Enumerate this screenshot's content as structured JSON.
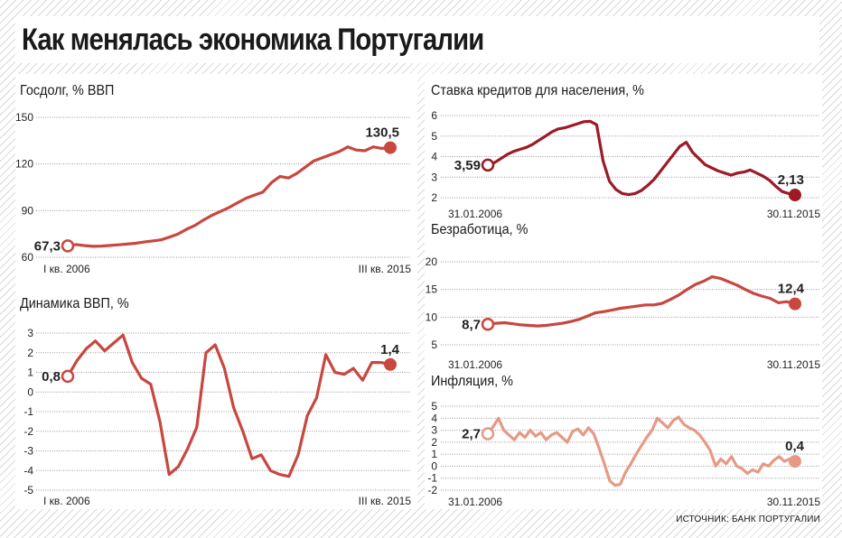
{
  "page": {
    "title": "Как менялась экономика Португалии",
    "source": "ИСТОЧНИК: БАНК ПОРТУГАЛИИ"
  },
  "chart_data": [
    {
      "id": "debt",
      "type": "line",
      "title": "Госдолг, % ВВП",
      "color": "#c8473f",
      "ylim": [
        60,
        150
      ],
      "yticks": [
        60,
        90,
        120,
        150
      ],
      "x_start_label": "I кв. 2006",
      "x_end_label": "III кв. 2015",
      "start_label": "67,3",
      "end_label": "130,5",
      "values": [
        67.3,
        68.2,
        67.5,
        67.0,
        67.2,
        67.6,
        68.0,
        68.5,
        69.0,
        69.8,
        70.5,
        71.2,
        73.0,
        75.0,
        78.0,
        80.5,
        84.0,
        87.0,
        89.5,
        92.0,
        95.0,
        98.0,
        100.0,
        102.0,
        108.0,
        112.0,
        111.0,
        114.0,
        118.0,
        122.0,
        124.0,
        126.0,
        128.0,
        131.0,
        129.0,
        128.5,
        131.0,
        130.0,
        130.5
      ]
    },
    {
      "id": "gdp",
      "type": "line",
      "title": "Динамика ВВП, %",
      "color": "#c8473f",
      "ylim": [
        -5,
        3
      ],
      "yticks": [
        -5,
        -4,
        -3,
        -2,
        -1,
        0,
        1,
        2,
        3
      ],
      "x_start_label": "I кв. 2006",
      "x_end_label": "III кв. 2015",
      "start_label": "0,8",
      "end_label": "1,4",
      "values": [
        0.8,
        1.6,
        2.2,
        2.6,
        2.1,
        2.5,
        2.9,
        1.5,
        0.7,
        0.4,
        -1.5,
        -4.2,
        -3.8,
        -2.9,
        -1.8,
        2.0,
        2.4,
        1.2,
        -0.8,
        -2.0,
        -3.4,
        -3.2,
        -4.0,
        -4.2,
        -4.3,
        -3.2,
        -1.2,
        -0.3,
        1.9,
        1.0,
        0.9,
        1.2,
        0.6,
        1.5,
        1.5,
        1.4
      ]
    },
    {
      "id": "rate",
      "type": "line",
      "title": "Ставка кредитов для населения, %",
      "color": "#9b1b26",
      "ylim": [
        2,
        6
      ],
      "yticks": [
        2,
        3,
        4,
        5,
        6
      ],
      "x_start_label": "31.01.2006",
      "x_end_label": "30.11.2015",
      "start_label": "3,59",
      "end_label": "2,13",
      "values": [
        3.59,
        3.7,
        3.9,
        4.1,
        4.25,
        4.35,
        4.45,
        4.6,
        4.8,
        5.0,
        5.2,
        5.35,
        5.4,
        5.5,
        5.6,
        5.7,
        5.72,
        5.55,
        3.8,
        2.8,
        2.4,
        2.2,
        2.15,
        2.2,
        2.35,
        2.6,
        2.9,
        3.3,
        3.7,
        4.1,
        4.5,
        4.7,
        4.2,
        3.9,
        3.6,
        3.45,
        3.3,
        3.2,
        3.1,
        3.2,
        3.25,
        3.35,
        3.2,
        3.05,
        2.85,
        2.55,
        2.3,
        2.2,
        2.13
      ]
    },
    {
      "id": "unemployment",
      "type": "line",
      "title": "Безработица, %",
      "color": "#c8473f",
      "ylim": [
        5,
        20
      ],
      "yticks": [
        5,
        10,
        15,
        20
      ],
      "x_start_label": "31.01.2006",
      "x_end_label": "30.11.2015",
      "start_label": "8,7",
      "end_label": "12,4",
      "values": [
        8.7,
        8.9,
        9.0,
        8.8,
        8.6,
        8.5,
        8.4,
        8.5,
        8.7,
        8.9,
        9.2,
        9.6,
        10.2,
        10.8,
        11.0,
        11.3,
        11.6,
        11.8,
        12.0,
        12.2,
        12.2,
        12.5,
        13.2,
        14.0,
        15.0,
        15.9,
        16.5,
        17.3,
        17.0,
        16.4,
        15.8,
        15.0,
        14.3,
        13.8,
        13.4,
        12.6,
        12.8,
        12.4
      ]
    },
    {
      "id": "inflation",
      "type": "line",
      "title": "Инфляция, %",
      "color": "#e59a85",
      "ylim": [
        -2,
        5
      ],
      "yticks": [
        -2,
        -1,
        0,
        1,
        2,
        3,
        4,
        5
      ],
      "x_start_label": "31.01.2006",
      "x_end_label": "30.11.2015",
      "start_label": "2,7",
      "end_label": "0,4",
      "values": [
        2.7,
        3.3,
        4.0,
        3.0,
        2.6,
        2.2,
        2.8,
        2.4,
        3.0,
        2.5,
        2.8,
        2.2,
        2.6,
        2.8,
        2.4,
        2.0,
        2.9,
        3.1,
        2.6,
        3.2,
        2.7,
        1.5,
        0.2,
        -1.2,
        -1.6,
        -1.5,
        -0.5,
        0.2,
        1.0,
        1.7,
        2.4,
        3.0,
        4.0,
        3.6,
        3.2,
        3.8,
        4.1,
        3.5,
        3.2,
        3.0,
        2.6,
        2.0,
        1.3,
        0.0,
        0.6,
        0.2,
        0.8,
        0.0,
        -0.2,
        -0.6,
        -0.3,
        -0.5,
        0.2,
        0.0,
        0.5,
        0.8,
        0.4,
        0.6,
        0.4
      ]
    }
  ]
}
